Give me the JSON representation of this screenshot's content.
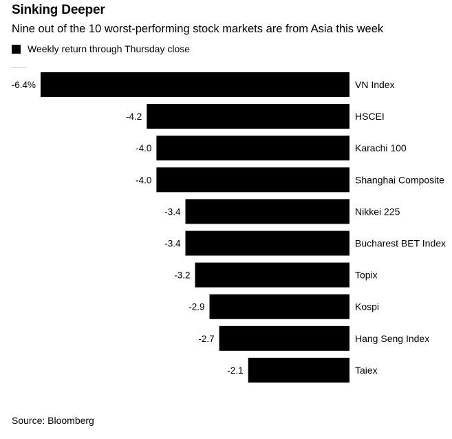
{
  "header": {
    "title": "Sinking Deeper",
    "subtitle": "Nine out of the 10 worst-performing stock markets are from Asia this week"
  },
  "legend": {
    "label": "Weekly return through Thursday close",
    "color": "#000000"
  },
  "footer": {
    "source": "Source: Bloomberg"
  },
  "chart_data": {
    "type": "bar",
    "orientation": "horizontal",
    "title": "Sinking Deeper",
    "subtitle": "Nine out of the 10 worst-performing stock markets are from Asia this week",
    "xlabel": "",
    "ylabel": "",
    "xlim": [
      -6.4,
      0
    ],
    "series": [
      {
        "name": "Weekly return through Thursday close",
        "color": "#000000",
        "values": [
          -6.4,
          -4.2,
          -4.0,
          -4.0,
          -3.4,
          -3.4,
          -3.2,
          -2.9,
          -2.7,
          -2.1
        ]
      }
    ],
    "categories": [
      "VN Index",
      "HSCEI",
      "Karachi 100",
      "Shanghai Composite",
      "Nikkei 225",
      "Bucharest BET Index",
      "Topix",
      "Kospi",
      "Hang Seng Index",
      "Taiex"
    ],
    "value_labels": [
      "-6.4%",
      "-4.2",
      "-4.0",
      "-4.0",
      "-3.4",
      "-3.4",
      "-3.2",
      "-2.9",
      "-2.7",
      "-2.1"
    ],
    "units": "%",
    "legend_position": "top-left"
  }
}
